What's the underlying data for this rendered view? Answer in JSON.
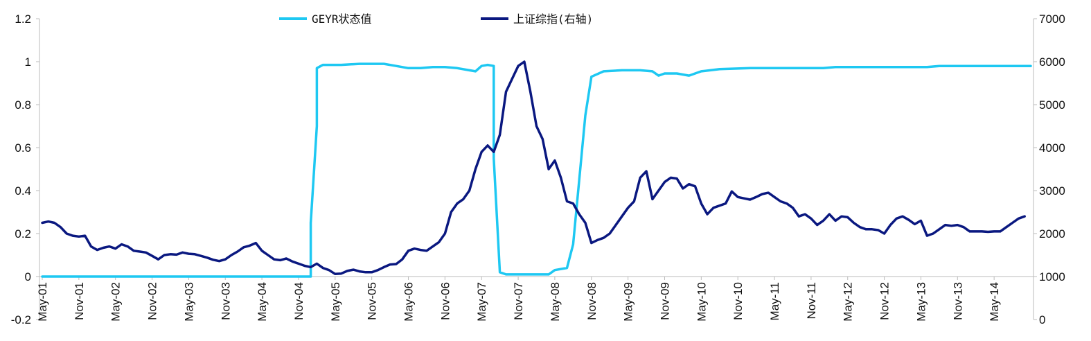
{
  "chart_data": {
    "type": "line",
    "x_ticks": [
      "May-01",
      "Nov-01",
      "May-02",
      "Nov-02",
      "May-03",
      "Nov-03",
      "May-04",
      "Nov-04",
      "May-05",
      "Nov-05",
      "May-06",
      "Nov-06",
      "May-07",
      "Nov-07",
      "May-08",
      "Nov-08",
      "May-09",
      "Nov-09",
      "May-10",
      "Nov-10",
      "May-11",
      "Nov-11",
      "May-12",
      "Nov-12",
      "May-13",
      "Nov-13",
      "May-14"
    ],
    "y_left": {
      "min": -0.2,
      "max": 1.2,
      "ticks": [
        "-0.2",
        "0",
        "0.2",
        "0.4",
        "0.6",
        "0.8",
        "1",
        "1.2"
      ]
    },
    "y_right": {
      "min": 0,
      "max": 7000,
      "ticks": [
        "0",
        "1000",
        "2000",
        "3000",
        "4000",
        "5000",
        "6000",
        "7000"
      ]
    },
    "grid": false,
    "legend_position": "top",
    "series": [
      {
        "name": "GEYR状态值",
        "axis": "left",
        "color": "#1ec8f2",
        "points": [
          [
            "2001-05",
            0
          ],
          [
            "2002-01",
            0
          ],
          [
            "2003-01",
            0
          ],
          [
            "2004-01",
            0
          ],
          [
            "2004-12",
            0
          ],
          [
            "2005-01",
            0
          ],
          [
            "2005-01",
            0.25
          ],
          [
            "2005-02",
            0.7
          ],
          [
            "2005-02",
            0.97
          ],
          [
            "2005-03",
            0.985
          ],
          [
            "2005-06",
            0.985
          ],
          [
            "2005-09",
            0.99
          ],
          [
            "2006-01",
            0.99
          ],
          [
            "2006-03",
            0.98
          ],
          [
            "2006-05",
            0.97
          ],
          [
            "2006-07",
            0.97
          ],
          [
            "2006-09",
            0.975
          ],
          [
            "2006-11",
            0.975
          ],
          [
            "2007-01",
            0.97
          ],
          [
            "2007-03",
            0.96
          ],
          [
            "2007-04",
            0.955
          ],
          [
            "2007-05",
            0.98
          ],
          [
            "2007-06",
            0.985
          ],
          [
            "2007-07",
            0.98
          ],
          [
            "2007-07",
            0.55
          ],
          [
            "2007-08",
            0.02
          ],
          [
            "2007-09",
            0.01
          ],
          [
            "2008-02",
            0.01
          ],
          [
            "2008-04",
            0.01
          ],
          [
            "2008-05",
            0.03
          ],
          [
            "2008-07",
            0.04
          ],
          [
            "2008-08",
            0.15
          ],
          [
            "2008-09",
            0.45
          ],
          [
            "2008-10",
            0.75
          ],
          [
            "2008-11",
            0.93
          ],
          [
            "2009-01",
            0.955
          ],
          [
            "2009-04",
            0.96
          ],
          [
            "2009-07",
            0.96
          ],
          [
            "2009-09",
            0.955
          ],
          [
            "2009-10",
            0.935
          ],
          [
            "2009-11",
            0.945
          ],
          [
            "2010-01",
            0.945
          ],
          [
            "2010-03",
            0.935
          ],
          [
            "2010-05",
            0.955
          ],
          [
            "2010-08",
            0.965
          ],
          [
            "2011-01",
            0.97
          ],
          [
            "2011-07",
            0.97
          ],
          [
            "2012-01",
            0.97
          ],
          [
            "2012-03",
            0.975
          ],
          [
            "2012-09",
            0.975
          ],
          [
            "2013-06",
            0.975
          ],
          [
            "2013-08",
            0.98
          ],
          [
            "2014-01",
            0.98
          ],
          [
            "2014-07",
            0.98
          ],
          [
            "2014-11",
            0.98
          ]
        ]
      },
      {
        "name": "上证综指(右轴)",
        "axis": "right",
        "color": "#0a1880",
        "points": [
          [
            "2001-05",
            2250
          ],
          [
            "2001-06",
            2280
          ],
          [
            "2001-07",
            2250
          ],
          [
            "2001-08",
            2150
          ],
          [
            "2001-09",
            2000
          ],
          [
            "2001-10",
            1950
          ],
          [
            "2001-11",
            1930
          ],
          [
            "2001-12",
            1950
          ],
          [
            "2002-01",
            1700
          ],
          [
            "2002-02",
            1620
          ],
          [
            "2002-03",
            1670
          ],
          [
            "2002-04",
            1700
          ],
          [
            "2002-05",
            1650
          ],
          [
            "2002-06",
            1750
          ],
          [
            "2002-07",
            1700
          ],
          [
            "2002-08",
            1600
          ],
          [
            "2002-09",
            1580
          ],
          [
            "2002-10",
            1560
          ],
          [
            "2002-11",
            1480
          ],
          [
            "2002-12",
            1400
          ],
          [
            "2003-01",
            1500
          ],
          [
            "2003-02",
            1520
          ],
          [
            "2003-03",
            1510
          ],
          [
            "2003-04",
            1560
          ],
          [
            "2003-05",
            1530
          ],
          [
            "2003-06",
            1520
          ],
          [
            "2003-07",
            1480
          ],
          [
            "2003-08",
            1440
          ],
          [
            "2003-09",
            1390
          ],
          [
            "2003-10",
            1360
          ],
          [
            "2003-11",
            1400
          ],
          [
            "2003-12",
            1500
          ],
          [
            "2004-01",
            1580
          ],
          [
            "2004-02",
            1680
          ],
          [
            "2004-03",
            1720
          ],
          [
            "2004-04",
            1780
          ],
          [
            "2004-05",
            1600
          ],
          [
            "2004-06",
            1500
          ],
          [
            "2004-07",
            1400
          ],
          [
            "2004-08",
            1380
          ],
          [
            "2004-09",
            1420
          ],
          [
            "2004-10",
            1350
          ],
          [
            "2004-11",
            1300
          ],
          [
            "2004-12",
            1250
          ],
          [
            "2005-01",
            1220
          ],
          [
            "2005-02",
            1300
          ],
          [
            "2005-03",
            1200
          ],
          [
            "2005-04",
            1150
          ],
          [
            "2005-05",
            1060
          ],
          [
            "2005-06",
            1070
          ],
          [
            "2005-07",
            1130
          ],
          [
            "2005-08",
            1160
          ],
          [
            "2005-09",
            1120
          ],
          [
            "2005-10",
            1100
          ],
          [
            "2005-11",
            1100
          ],
          [
            "2005-12",
            1150
          ],
          [
            "2006-01",
            1220
          ],
          [
            "2006-02",
            1280
          ],
          [
            "2006-03",
            1290
          ],
          [
            "2006-04",
            1400
          ],
          [
            "2006-05",
            1600
          ],
          [
            "2006-06",
            1650
          ],
          [
            "2006-07",
            1620
          ],
          [
            "2006-08",
            1600
          ],
          [
            "2006-09",
            1700
          ],
          [
            "2006-10",
            1800
          ],
          [
            "2006-11",
            2000
          ],
          [
            "2006-12",
            2500
          ],
          [
            "2007-01",
            2700
          ],
          [
            "2007-02",
            2800
          ],
          [
            "2007-03",
            3000
          ],
          [
            "2007-04",
            3500
          ],
          [
            "2007-05",
            3900
          ],
          [
            "2007-06",
            4050
          ],
          [
            "2007-07",
            3900
          ],
          [
            "2007-08",
            4300
          ],
          [
            "2007-09",
            5300
          ],
          [
            "2007-10",
            5600
          ],
          [
            "2007-11",
            5900
          ],
          [
            "2007-12",
            6000
          ],
          [
            "2008-01",
            5300
          ],
          [
            "2008-02",
            4500
          ],
          [
            "2008-03",
            4200
          ],
          [
            "2008-04",
            3500
          ],
          [
            "2008-05",
            3700
          ],
          [
            "2008-06",
            3300
          ],
          [
            "2008-07",
            2750
          ],
          [
            "2008-08",
            2700
          ],
          [
            "2008-09",
            2450
          ],
          [
            "2008-10",
            2250
          ],
          [
            "2008-11",
            1780
          ],
          [
            "2008-12",
            1850
          ],
          [
            "2009-01",
            1900
          ],
          [
            "2009-02",
            2000
          ],
          [
            "2009-03",
            2200
          ],
          [
            "2009-04",
            2400
          ],
          [
            "2009-05",
            2600
          ],
          [
            "2009-06",
            2750
          ],
          [
            "2009-07",
            3300
          ],
          [
            "2009-08",
            3450
          ],
          [
            "2009-09",
            2800
          ],
          [
            "2009-10",
            3000
          ],
          [
            "2009-11",
            3200
          ],
          [
            "2009-12",
            3300
          ],
          [
            "2010-01",
            3280
          ],
          [
            "2010-02",
            3050
          ],
          [
            "2010-03",
            3150
          ],
          [
            "2010-04",
            3100
          ],
          [
            "2010-05",
            2700
          ],
          [
            "2010-06",
            2450
          ],
          [
            "2010-07",
            2600
          ],
          [
            "2010-08",
            2650
          ],
          [
            "2010-09",
            2700
          ],
          [
            "2010-10",
            2980
          ],
          [
            "2010-11",
            2850
          ],
          [
            "2010-12",
            2820
          ],
          [
            "2011-01",
            2790
          ],
          [
            "2011-02",
            2850
          ],
          [
            "2011-03",
            2920
          ],
          [
            "2011-04",
            2950
          ],
          [
            "2011-05",
            2850
          ],
          [
            "2011-06",
            2750
          ],
          [
            "2011-07",
            2700
          ],
          [
            "2011-08",
            2600
          ],
          [
            "2011-09",
            2400
          ],
          [
            "2011-10",
            2450
          ],
          [
            "2011-11",
            2350
          ],
          [
            "2011-12",
            2200
          ],
          [
            "2012-01",
            2300
          ],
          [
            "2012-02",
            2450
          ],
          [
            "2012-03",
            2300
          ],
          [
            "2012-04",
            2400
          ],
          [
            "2012-05",
            2380
          ],
          [
            "2012-06",
            2250
          ],
          [
            "2012-07",
            2150
          ],
          [
            "2012-08",
            2100
          ],
          [
            "2012-09",
            2100
          ],
          [
            "2012-10",
            2080
          ],
          [
            "2012-11",
            2000
          ],
          [
            "2012-12",
            2200
          ],
          [
            "2013-01",
            2350
          ],
          [
            "2013-02",
            2400
          ],
          [
            "2013-03",
            2320
          ],
          [
            "2013-04",
            2220
          ],
          [
            "2013-05",
            2300
          ],
          [
            "2013-06",
            1950
          ],
          [
            "2013-07",
            2000
          ],
          [
            "2013-08",
            2100
          ],
          [
            "2013-09",
            2200
          ],
          [
            "2013-10",
            2180
          ],
          [
            "2013-11",
            2200
          ],
          [
            "2013-12",
            2150
          ],
          [
            "2014-01",
            2050
          ],
          [
            "2014-02",
            2050
          ],
          [
            "2014-03",
            2050
          ],
          [
            "2014-04",
            2040
          ],
          [
            "2014-05",
            2050
          ],
          [
            "2014-06",
            2050
          ],
          [
            "2014-07",
            2150
          ],
          [
            "2014-08",
            2250
          ],
          [
            "2014-09",
            2350
          ],
          [
            "2014-10",
            2400
          ]
        ]
      }
    ]
  }
}
